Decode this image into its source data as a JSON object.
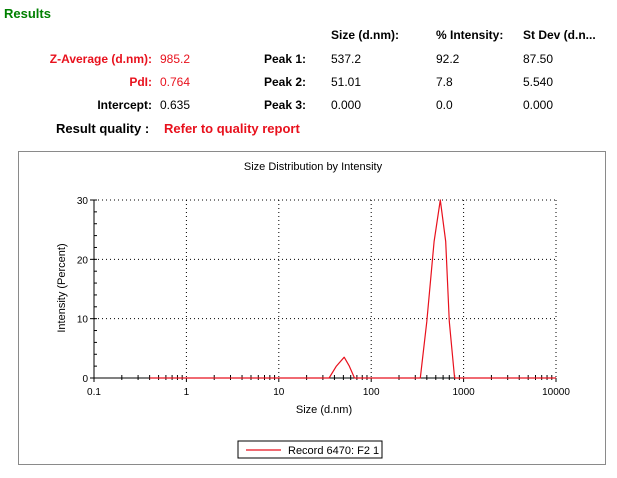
{
  "title": "Results",
  "table": {
    "headers": {
      "size": "Size (d.nm):",
      "intensity": "% Intensity:",
      "stdev": "St Dev (d.n..."
    },
    "zavg": {
      "label": "Z-Average (d.nm):",
      "value": "985.2"
    },
    "pdi": {
      "label": "PdI:",
      "value": "0.764"
    },
    "intercept": {
      "label": "Intercept:",
      "value": "0.635"
    },
    "peaks": [
      {
        "label": "Peak 1:",
        "size": "537.2",
        "intensity": "92.2",
        "stdev": "87.50"
      },
      {
        "label": "Peak 2:",
        "size": "51.01",
        "intensity": "7.8",
        "stdev": "5.540"
      },
      {
        "label": "Peak 3:",
        "size": "0.000",
        "intensity": "0.0",
        "stdev": "0.000"
      }
    ],
    "quality_label": "Result quality :",
    "quality_link": "Refer to quality report"
  },
  "chart_data": {
    "type": "line",
    "title": "Size Distribution by Intensity",
    "xlabel": "Size (d.nm)",
    "ylabel": "Intensity (Percent)",
    "xscale": "log",
    "xlim": [
      0.1,
      10000
    ],
    "ylim": [
      0,
      30
    ],
    "xticks": [
      "0.1",
      "1",
      "10",
      "100",
      "1000",
      "10000"
    ],
    "yticks": [
      "0",
      "10",
      "20",
      "30"
    ],
    "grid": true,
    "legend_position": "bottom-center",
    "series": [
      {
        "name": "Record 6470: F2 1",
        "color": "#e8111d",
        "x": [
          0.4,
          35,
          42,
          51,
          58,
          66,
          70,
          340,
          400,
          480,
          560,
          640,
          700,
          800,
          900,
          10000
        ],
        "y": [
          0,
          0,
          2.0,
          3.5,
          2.0,
          0,
          0,
          0,
          9.5,
          23,
          30,
          23,
          9.5,
          0,
          0,
          0
        ]
      }
    ]
  }
}
